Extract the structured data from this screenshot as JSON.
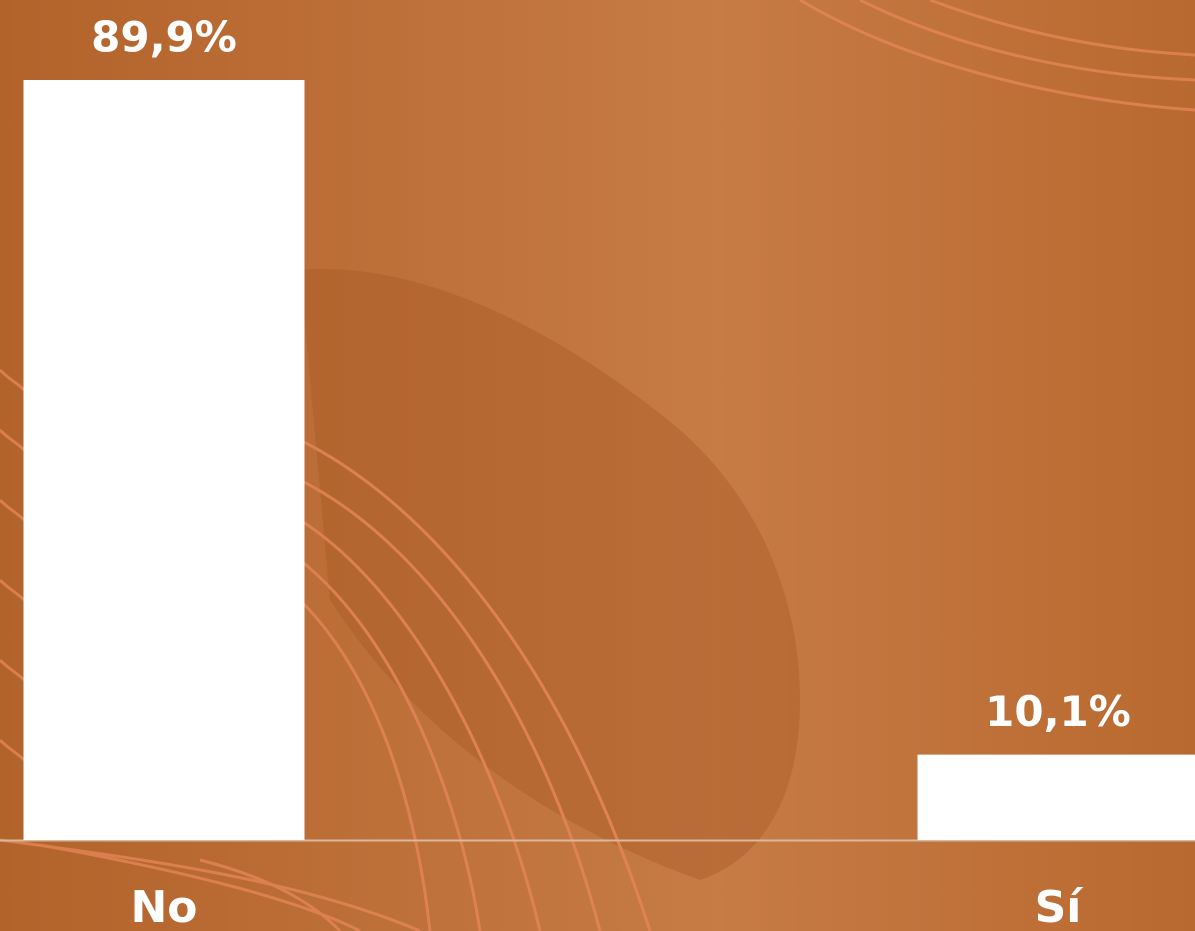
{
  "chart_data": {
    "type": "bar",
    "categories": [
      "No",
      "Sí"
    ],
    "values": [
      89.9,
      10.1
    ],
    "value_labels": [
      "89,9%",
      "10,1%"
    ],
    "color": "#ffffff"
  }
}
